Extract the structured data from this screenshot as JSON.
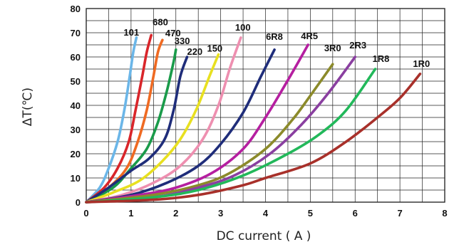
{
  "chart_data": {
    "type": "line",
    "title": "",
    "xlabel": "DC current ( A )",
    "ylabel": "ΔT(℃)",
    "xlim": [
      0,
      8
    ],
    "ylim": [
      0,
      80
    ],
    "grid": true,
    "legend": "none",
    "x_ticks": [
      "0",
      "1",
      "2",
      "3",
      "4",
      "5",
      "6",
      "7",
      "8"
    ],
    "y_ticks": [
      "0",
      "10",
      "20",
      "30",
      "40",
      "50",
      "60",
      "70",
      "80"
    ],
    "series": [
      {
        "name": "101",
        "color": "#6bb6e8",
        "points": [
          [
            0,
            0
          ],
          [
            0.3,
            6
          ],
          [
            0.5,
            14
          ],
          [
            0.7,
            25
          ],
          [
            0.85,
            38
          ],
          [
            0.97,
            52
          ],
          [
            1.05,
            62
          ],
          [
            1.12,
            68
          ]
        ]
      },
      {
        "name": "680",
        "color": "#d9252a",
        "points": [
          [
            0,
            0
          ],
          [
            0.4,
            6
          ],
          [
            0.7,
            14
          ],
          [
            0.95,
            25
          ],
          [
            1.1,
            38
          ],
          [
            1.25,
            52
          ],
          [
            1.35,
            62
          ],
          [
            1.45,
            69
          ]
        ]
      },
      {
        "name": "470",
        "color": "#ef6a22",
        "points": [
          [
            0,
            0
          ],
          [
            0.5,
            6
          ],
          [
            0.9,
            14
          ],
          [
            1.15,
            25
          ],
          [
            1.35,
            38
          ],
          [
            1.5,
            52
          ],
          [
            1.6,
            62
          ],
          [
            1.7,
            67
          ]
        ]
      },
      {
        "name": "330",
        "color": "#1a9b4a",
        "points": [
          [
            0,
            0
          ],
          [
            0.6,
            6
          ],
          [
            1.0,
            14
          ],
          [
            1.35,
            22
          ],
          [
            1.6,
            33
          ],
          [
            1.8,
            46
          ],
          [
            1.95,
            58
          ],
          [
            2.0,
            63
          ]
        ]
      },
      {
        "name": "220",
        "color": "#1f2d7a",
        "points": [
          [
            0,
            0
          ],
          [
            0.5,
            6
          ],
          [
            1.0,
            13
          ],
          [
            1.4,
            18
          ],
          [
            1.75,
            26
          ],
          [
            1.95,
            38
          ],
          [
            2.1,
            52
          ],
          [
            2.25,
            60
          ]
        ]
      },
      {
        "name": "150",
        "color": "#e8e020",
        "points": [
          [
            0,
            0
          ],
          [
            0.6,
            4
          ],
          [
            1.2,
            9
          ],
          [
            1.7,
            17
          ],
          [
            2.1,
            26
          ],
          [
            2.45,
            38
          ],
          [
            2.75,
            52
          ],
          [
            2.95,
            61
          ]
        ]
      },
      {
        "name": "100",
        "color": "#ee8fb0",
        "points": [
          [
            0,
            0
          ],
          [
            0.8,
            3
          ],
          [
            1.5,
            8
          ],
          [
            2.1,
            15
          ],
          [
            2.6,
            26
          ],
          [
            2.95,
            40
          ],
          [
            3.2,
            55
          ],
          [
            3.45,
            68
          ]
        ]
      },
      {
        "name": "6R8",
        "color": "#1f2d7a",
        "points": [
          [
            0,
            0
          ],
          [
            1.0,
            3
          ],
          [
            1.8,
            8
          ],
          [
            2.5,
            15
          ],
          [
            3.0,
            24
          ],
          [
            3.5,
            37
          ],
          [
            3.9,
            52
          ],
          [
            4.2,
            63
          ]
        ]
      },
      {
        "name": "4R5",
        "color": "#b51fa0",
        "points": [
          [
            0,
            0
          ],
          [
            1.2,
            3
          ],
          [
            2.0,
            6
          ],
          [
            2.8,
            12
          ],
          [
            3.5,
            22
          ],
          [
            4.0,
            35
          ],
          [
            4.55,
            52
          ],
          [
            4.95,
            65
          ]
        ]
      },
      {
        "name": "3R0",
        "color": "#8b8a2a",
        "points": [
          [
            0,
            0
          ],
          [
            1.5,
            3
          ],
          [
            2.5,
            7
          ],
          [
            3.2,
            12
          ],
          [
            4.0,
            22
          ],
          [
            4.6,
            34
          ],
          [
            5.0,
            44
          ],
          [
            5.5,
            57
          ]
        ]
      },
      {
        "name": "2R3",
        "color": "#8a3fa0",
        "points": [
          [
            0,
            0
          ],
          [
            1.5,
            2
          ],
          [
            2.5,
            6
          ],
          [
            3.3,
            11
          ],
          [
            4.1,
            20
          ],
          [
            4.8,
            32
          ],
          [
            5.4,
            45
          ],
          [
            6.0,
            60
          ]
        ]
      },
      {
        "name": "1R8",
        "color": "#22b85a",
        "points": [
          [
            0,
            0
          ],
          [
            1.5,
            2
          ],
          [
            2.5,
            5
          ],
          [
            3.5,
            11
          ],
          [
            4.5,
            20
          ],
          [
            5.2,
            28
          ],
          [
            5.8,
            38
          ],
          [
            6.45,
            55
          ]
        ]
      },
      {
        "name": "1R0",
        "color": "#a8302a",
        "points": [
          [
            0,
            0
          ],
          [
            1.5,
            1
          ],
          [
            2.5,
            3
          ],
          [
            3.5,
            7
          ],
          [
            4.0,
            10
          ],
          [
            5.0,
            16
          ],
          [
            5.8,
            25
          ],
          [
            6.5,
            35
          ],
          [
            7.0,
            43
          ],
          [
            7.45,
            53
          ]
        ]
      }
    ]
  }
}
